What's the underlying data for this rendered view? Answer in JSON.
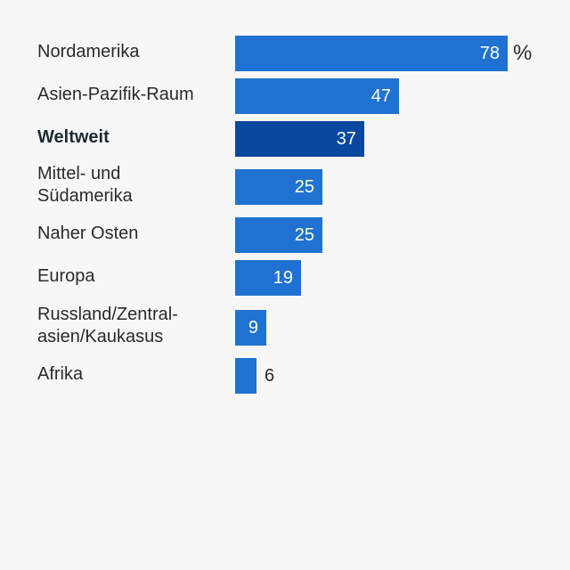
{
  "chart_data": {
    "type": "bar",
    "orientation": "horizontal",
    "unit": "%",
    "xlim": [
      0,
      100
    ],
    "grid": false,
    "legend": "none",
    "categories": [
      "Nordamerika",
      "Asien-Pazifik-Raum",
      "Weltweit",
      "Mittel- und\nSüdamerika",
      "Naher Osten",
      "Europa",
      "Russland/Zentral-\nasien/Kaukasus",
      "Afrika"
    ],
    "values": [
      78,
      47,
      37,
      25,
      25,
      19,
      9,
      6
    ],
    "highlight": "Weltweit",
    "colors": {
      "bar": "#1f72d1",
      "highlight": "#0a479f",
      "background": "#f7f7f7"
    }
  }
}
